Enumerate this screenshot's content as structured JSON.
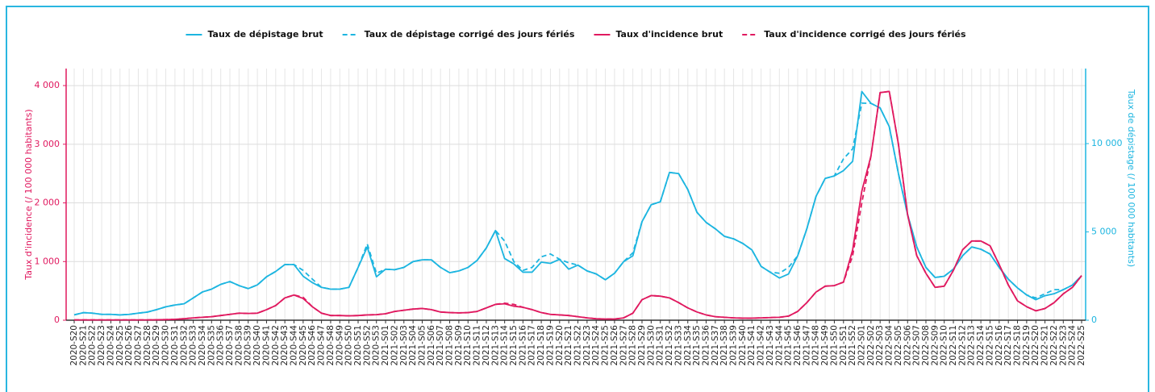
{
  "chart_data": {
    "type": "line",
    "y_label": "Taux d'incidence (/ 100 000 habitants)",
    "y2_label": "Taux de dépistage (/ 100 000 habitants)",
    "y_color": "#e0195f",
    "y2_color": "#1cb5e0",
    "categories": [
      "2020-S20",
      "2020-S21",
      "2020-S22",
      "2020-S23",
      "2020-S24",
      "2020-S25",
      "2020-S26",
      "2020-S27",
      "2020-S28",
      "2020-S29",
      "2020-S30",
      "2020-S31",
      "2020-S32",
      "2020-S33",
      "2020-S34",
      "2020-S35",
      "2020-S36",
      "2020-S37",
      "2020-S38",
      "2020-S39",
      "2020-S40",
      "2020-S41",
      "2020-S42",
      "2020-S43",
      "2020-S44",
      "2020-S45",
      "2020-S46",
      "2020-S47",
      "2020-S48",
      "2020-S49",
      "2020-S50",
      "2020-S51",
      "2020-S52",
      "2020-S53",
      "2021-S01",
      "2021-S02",
      "2021-S03",
      "2021-S04",
      "2021-S05",
      "2021-S06",
      "2021-S07",
      "2021-S08",
      "2021-S09",
      "2021-S10",
      "2021-S11",
      "2021-S12",
      "2021-S13",
      "2021-S14",
      "2021-S15",
      "2021-S16",
      "2021-S17",
      "2021-S18",
      "2021-S19",
      "2021-S20",
      "2021-S21",
      "2021-S22",
      "2021-S23",
      "2021-S24",
      "2021-S25",
      "2021-S26",
      "2021-S27",
      "2021-S28",
      "2021-S29",
      "2021-S30",
      "2021-S31",
      "2021-S32",
      "2021-S33",
      "2021-S34",
      "2021-S35",
      "2021-S36",
      "2021-S37",
      "2021-S38",
      "2021-S39",
      "2021-S40",
      "2021-S41",
      "2021-S42",
      "2021-S43",
      "2021-S44",
      "2021-S45",
      "2021-S46",
      "2021-S47",
      "2021-S48",
      "2021-S49",
      "2021-S50",
      "2021-S51",
      "2021-S52",
      "2022-S01",
      "2022-S02",
      "2022-S03",
      "2022-S04",
      "2022-S05",
      "2022-S06",
      "2022-S07",
      "2022-S08",
      "2022-S09",
      "2022-S10",
      "2022-S11",
      "2022-S12",
      "2022-S13",
      "2022-S14",
      "2022-S15",
      "2022-S16",
      "2022-S17",
      "2022-S18",
      "2022-S19",
      "2022-S20",
      "2022-S21",
      "2022-S22",
      "2022-S23",
      "2022-S24",
      "2022-S25"
    ],
    "series": [
      {
        "name": "Taux de dépistage brut",
        "color": "#1cb5e0",
        "style": "solid",
        "axis": "y2",
        "values": [
          300,
          430,
          400,
          330,
          330,
          300,
          330,
          400,
          460,
          600,
          760,
          860,
          930,
          1260,
          1600,
          1760,
          2030,
          2190,
          1960,
          1790,
          2000,
          2460,
          2760,
          3150,
          3150,
          2490,
          2130,
          1860,
          1760,
          1760,
          1860,
          2990,
          4150,
          2460,
          2890,
          2860,
          2990,
          3320,
          3420,
          3420,
          2990,
          2690,
          2790,
          2990,
          3390,
          4090,
          5080,
          3490,
          3190,
          2720,
          2720,
          3290,
          3220,
          3450,
          2890,
          3120,
          2790,
          2620,
          2290,
          2660,
          3320,
          3650,
          5580,
          6540,
          6710,
          8370,
          8300,
          7400,
          6110,
          5540,
          5180,
          4750,
          4610,
          4350,
          3980,
          3050,
          2720,
          2390,
          2620,
          3650,
          5180,
          7010,
          8030,
          8170,
          8470,
          9000,
          12950,
          12280,
          12020,
          10960,
          8300,
          5980,
          4150,
          2990,
          2420,
          2490,
          2890,
          3650,
          4150,
          4020,
          3750,
          2990,
          2320,
          1830,
          1430,
          1160,
          1390,
          1500,
          1730,
          1990,
          2520
        ]
      },
      {
        "name": "Taux de dépistage corrigé des jours fériés",
        "color": "#1cb5e0",
        "style": "dashed",
        "axis": "y2",
        "values": [
          300,
          430,
          400,
          330,
          330,
          300,
          330,
          400,
          460,
          600,
          760,
          860,
          930,
          1260,
          1600,
          1760,
          2030,
          2190,
          1960,
          1790,
          2000,
          2460,
          2760,
          3150,
          3150,
          2820,
          2330,
          1860,
          1760,
          1760,
          1860,
          2990,
          4320,
          2660,
          2890,
          2860,
          2990,
          3320,
          3420,
          3420,
          2990,
          2690,
          2790,
          2990,
          3390,
          4090,
          5080,
          4480,
          3320,
          2820,
          2990,
          3590,
          3750,
          3450,
          3250,
          3120,
          2790,
          2620,
          2290,
          2660,
          3320,
          3820,
          5580,
          6540,
          6710,
          8370,
          8300,
          7400,
          6110,
          5540,
          5180,
          4750,
          4610,
          4350,
          3980,
          3050,
          2720,
          2660,
          2990,
          3650,
          5180,
          7010,
          8030,
          8170,
          9140,
          9700,
          12290,
          12280,
          12020,
          10960,
          8300,
          5980,
          4150,
          2990,
          2420,
          2490,
          2890,
          3650,
          4150,
          4020,
          3750,
          2990,
          2320,
          1830,
          1430,
          1260,
          1500,
          1730,
          1730,
          1990,
          2520
        ]
      },
      {
        "name": "Taux d'incidence brut",
        "color": "#e0195f",
        "style": "solid",
        "values": [
          5,
          5,
          5,
          5,
          5,
          5,
          5,
          5,
          5,
          8,
          10,
          15,
          25,
          40,
          50,
          60,
          80,
          100,
          120,
          115,
          120,
          180,
          250,
          380,
          430,
          370,
          230,
          120,
          80,
          80,
          75,
          80,
          90,
          95,
          110,
          150,
          170,
          190,
          200,
          180,
          140,
          130,
          125,
          130,
          150,
          210,
          270,
          280,
          240,
          220,
          180,
          130,
          100,
          90,
          80,
          60,
          40,
          25,
          20,
          20,
          40,
          120,
          350,
          420,
          410,
          380,
          300,
          210,
          140,
          90,
          60,
          50,
          40,
          35,
          35,
          40,
          45,
          50,
          70,
          150,
          300,
          480,
          580,
          590,
          650,
          1200,
          2200,
          2800,
          3880,
          3900,
          3000,
          1800,
          1100,
          800,
          560,
          580,
          850,
          1200,
          1350,
          1350,
          1270,
          950,
          600,
          330,
          230,
          160,
          200,
          300,
          450,
          560,
          760
        ]
      },
      {
        "name": "Taux d'incidence corrigé des jours fériés",
        "color": "#e0195f",
        "style": "dashed",
        "values": [
          5,
          5,
          5,
          5,
          5,
          5,
          5,
          5,
          5,
          8,
          10,
          15,
          25,
          40,
          50,
          60,
          80,
          100,
          120,
          115,
          120,
          180,
          250,
          380,
          430,
          390,
          230,
          120,
          80,
          80,
          75,
          80,
          90,
          95,
          110,
          150,
          170,
          190,
          200,
          180,
          140,
          130,
          125,
          130,
          150,
          210,
          270,
          290,
          270,
          220,
          180,
          130,
          100,
          90,
          80,
          60,
          40,
          25,
          20,
          20,
          40,
          120,
          350,
          420,
          410,
          380,
          300,
          210,
          140,
          90,
          60,
          50,
          40,
          35,
          35,
          40,
          45,
          50,
          70,
          150,
          300,
          480,
          580,
          590,
          650,
          1100,
          2000,
          2800,
          3880,
          3900,
          3000,
          1800,
          1100,
          800,
          560,
          580,
          850,
          1200,
          1350,
          1350,
          1270,
          950,
          600,
          330,
          230,
          160,
          200,
          300,
          450,
          560,
          760
        ]
      }
    ],
    "ylim": [
      0,
      4290
    ],
    "yticks": [
      0,
      {
        "value": 1000,
        "label": "1 000"
      },
      {
        "value": 2000,
        "label": "2 000"
      },
      {
        "value": 3000,
        "label": "3 000"
      },
      {
        "value": 4000,
        "label": "4 000"
      }
    ],
    "y2lim": [
      0,
      14250
    ],
    "y2ticks": [
      0,
      {
        "value": 5000,
        "label": "5 000"
      },
      {
        "value": 10000,
        "label": "10 000"
      }
    ],
    "grid": true,
    "legend": "top"
  }
}
